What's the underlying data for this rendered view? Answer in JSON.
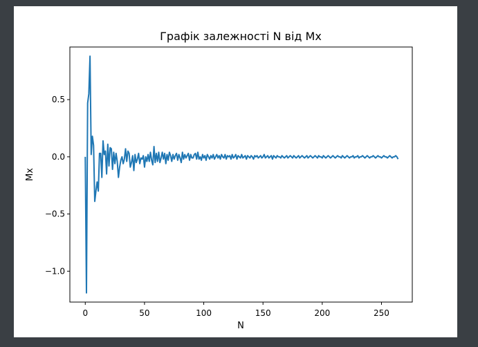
{
  "chart_data": {
    "type": "line",
    "title": "Графік залежності N від Mx",
    "xlabel": "N",
    "ylabel": "Mx",
    "xlim": [
      -13,
      276
    ],
    "ylim": [
      -1.27,
      0.96
    ],
    "grid": false,
    "x_ticks": [
      0,
      50,
      100,
      150,
      200,
      250
    ],
    "x_tick_labels": [
      "0",
      "50",
      "100",
      "150",
      "200",
      "250"
    ],
    "y_ticks": [
      -1.0,
      -0.5,
      0.0,
      0.5
    ],
    "y_tick_labels": [
      "−1.0",
      "−0.5",
      "0.0",
      "0.5"
    ],
    "series": [
      {
        "color": "#1f77b4",
        "x_start": 0,
        "x_step": 1,
        "values": [
          0.0,
          -1.19,
          0.47,
          0.55,
          0.88,
          0.02,
          0.18,
          0.1,
          -0.39,
          -0.3,
          -0.22,
          -0.3,
          0.03,
          0.03,
          -0.18,
          0.14,
          0.02,
          0.05,
          -0.15,
          0.11,
          -0.08,
          0.08,
          0.07,
          -0.11,
          0.04,
          -0.06,
          0.03,
          -0.04,
          -0.18,
          -0.09,
          -0.03,
          0.0,
          -0.06,
          -0.02,
          0.07,
          -0.04,
          0.05,
          0.03,
          -0.09,
          -0.05,
          0.01,
          -0.12,
          0.02,
          -0.05,
          -0.02,
          0.03,
          -0.06,
          -0.01,
          -0.02,
          0.01,
          -0.09,
          0.0,
          -0.04,
          0.02,
          -0.04,
          0.04,
          -0.03,
          -0.07,
          0.09,
          -0.05,
          0.03,
          -0.04,
          0.04,
          -0.05,
          -0.01,
          0.04,
          -0.02,
          0.03,
          -0.06,
          0.02,
          -0.03,
          0.04,
          0.01,
          -0.04,
          0.02,
          -0.02,
          0.01,
          0.03,
          -0.03,
          0.02,
          -0.01,
          -0.05,
          0.04,
          -0.02,
          0.02,
          -0.01,
          0.01,
          0.03,
          -0.03,
          0.02,
          -0.01,
          -0.01,
          0.02,
          0.03,
          -0.02,
          0.04,
          -0.02,
          0.0,
          -0.03,
          0.02,
          -0.01,
          0.01,
          -0.03,
          0.02,
          0.0,
          -0.02,
          0.01,
          -0.01,
          0.02,
          -0.02,
          0.0,
          0.02,
          -0.01,
          0.01,
          -0.02,
          0.02,
          0.0,
          -0.01,
          0.02,
          -0.02,
          0.01,
          0.0,
          0.01,
          -0.02,
          0.02,
          -0.01,
          0.0,
          0.02,
          -0.02,
          0.01,
          0.0,
          -0.01,
          0.02,
          -0.01,
          0.0,
          0.01,
          -0.02,
          0.01,
          0.0,
          -0.01,
          0.01,
          0.0,
          -0.02,
          0.01,
          0.0,
          0.01,
          -0.01,
          0.0,
          0.01,
          -0.01,
          0.0,
          0.02,
          -0.01,
          0.0,
          0.01,
          -0.01,
          0.0,
          0.01,
          -0.02,
          0.01,
          0.0,
          -0.01,
          0.01,
          0.0,
          0.0,
          -0.01,
          0.01,
          0.0,
          -0.01,
          0.0,
          0.01,
          -0.01,
          0.0,
          0.01,
          0.0,
          -0.01,
          0.01,
          0.0,
          -0.01,
          0.0,
          0.01,
          -0.01,
          0.0,
          0.01,
          0.0,
          -0.01,
          0.0,
          0.01,
          -0.01,
          0.0,
          0.01,
          0.0,
          -0.01,
          0.0,
          0.01,
          0.0,
          -0.01,
          0.01,
          0.0,
          0.0,
          -0.01,
          0.01,
          0.0,
          -0.01,
          0.0,
          0.01,
          0.0,
          -0.01,
          0.0,
          0.01,
          0.0,
          -0.01,
          0.0,
          0.01,
          0.0,
          0.0,
          -0.01,
          0.01,
          0.0,
          -0.01,
          0.0,
          0.01,
          0.0,
          -0.01,
          0.0,
          0.0,
          0.01,
          -0.01,
          0.0,
          0.0,
          0.01,
          -0.01,
          0.0,
          0.0,
          0.01,
          0.0,
          -0.01,
          0.0,
          0.01,
          0.0,
          -0.01,
          0.0,
          0.0,
          0.01,
          0.0,
          -0.01,
          0.0,
          0.01,
          0.0,
          0.0,
          -0.01,
          0.0,
          0.01,
          0.0,
          0.0,
          -0.01,
          0.0,
          0.01,
          0.0,
          -0.01,
          0.0,
          0.0,
          0.01,
          0.0,
          -0.02
        ]
      }
    ]
  }
}
